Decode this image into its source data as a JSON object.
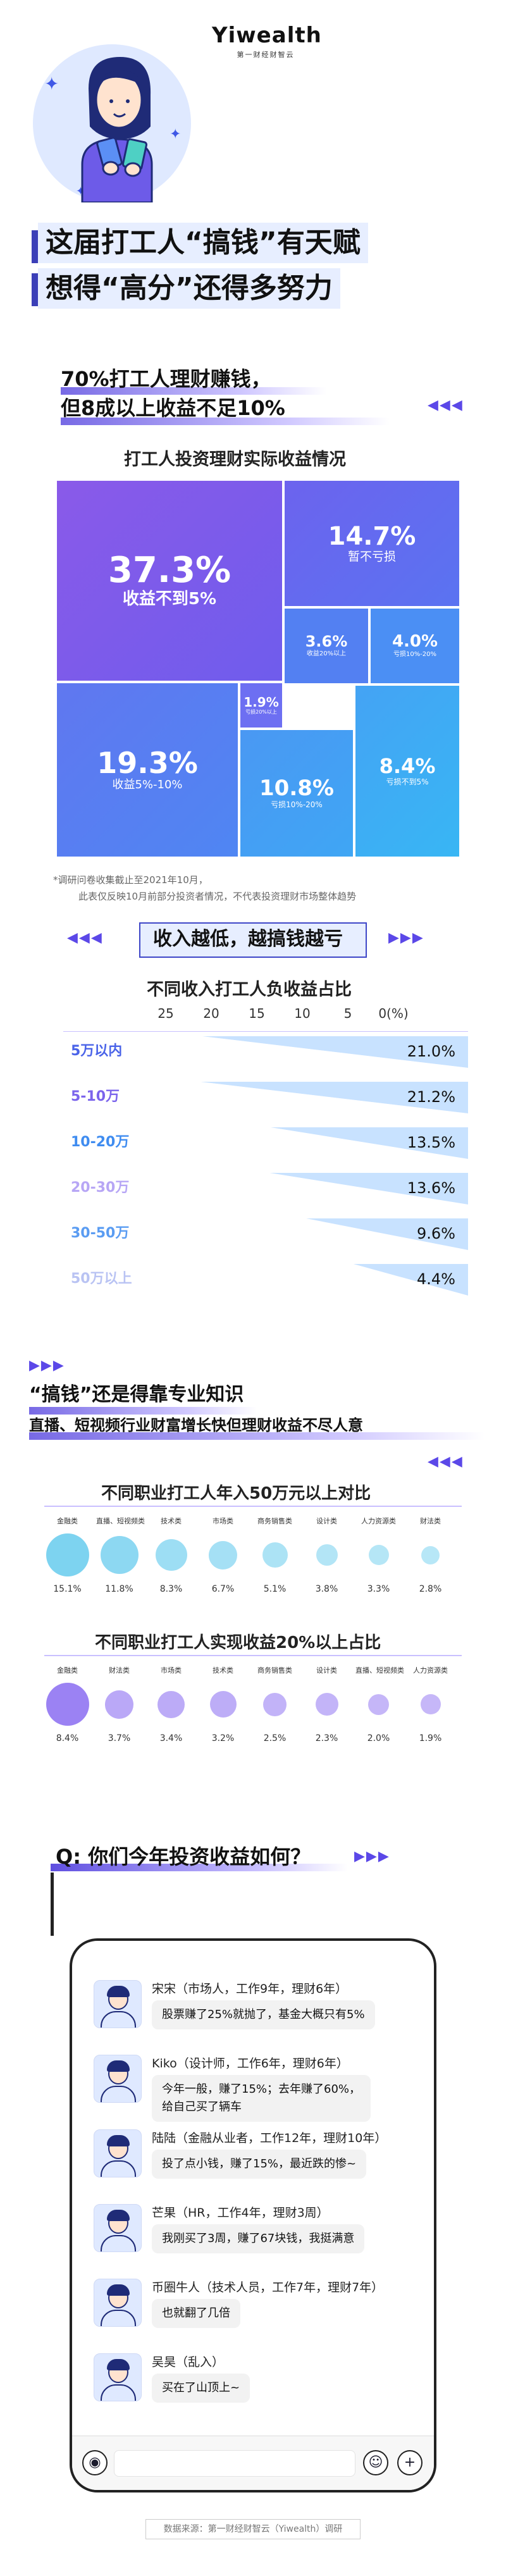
{
  "brand": {
    "name": "Yiwealth",
    "tagline": "第一财经财智云"
  },
  "header": {
    "title_line1": "这届打工人“搞钱”有天赋",
    "title_line2": "想得“高分”还得多努力"
  },
  "section1": {
    "heading_line1": "70%打工人理财赚钱，",
    "heading_line2": "但8成以上收益不足10%",
    "arrows": "◀◀◀",
    "chart_title": "打工人投资理财实际收益情况",
    "tiles": [
      {
        "pct": "37.3%",
        "label": "收益不到5%",
        "color": "#7a58ec"
      },
      {
        "pct": "14.7%",
        "label": "暂不亏损",
        "color": "#5e6cf0"
      },
      {
        "pct": "1.9%",
        "label": "亏损20%以上",
        "color": "#6d72f3"
      },
      {
        "pct": "3.6%",
        "label": "收益20%以上",
        "color": "#4f86f3"
      },
      {
        "pct": "4.0%",
        "label": "亏损10%-20%",
        "color": "#4c93f4"
      },
      {
        "pct": "19.3%",
        "label": "收益5%-10%",
        "color": "#5b7cf1"
      },
      {
        "pct": "10.8%",
        "label": "亏损10%-20%",
        "color": "#43a1f4"
      },
      {
        "pct": "8.4%",
        "label": "亏损不到5%",
        "color": "#3cacf4"
      }
    ],
    "note_line1": "*调研问卷收集截止至2021年10月，",
    "note_line2": "此表仅反映10月前部分投资者情况，不代表投资理财市场整体趋势"
  },
  "section2": {
    "heading": "收入越低，越搞钱越亏",
    "arrows_left": "◀◀◀",
    "arrows_right": "▶▶▶",
    "chart_title": "不同收入打工人负收益占比",
    "axis_ticks": [
      "25",
      "20",
      "15",
      "10",
      "5",
      "0(%)"
    ],
    "rows": [
      {
        "label": "5万以内",
        "value": "21.0%",
        "num": 21.0,
        "color": "#4a63e8"
      },
      {
        "label": "5-10万",
        "value": "21.2%",
        "num": 21.2,
        "color": "#7b64ec"
      },
      {
        "label": "10-20万",
        "value": "13.5%",
        "num": 13.5,
        "color": "#3f8cf0"
      },
      {
        "label": "20-30万",
        "value": "13.6%",
        "num": 13.6,
        "color": "#b7a6f5"
      },
      {
        "label": "30-50万",
        "value": "9.6%",
        "num": 9.6,
        "color": "#5a9cf2"
      },
      {
        "label": "50万以上",
        "value": "4.4%",
        "num": 4.4,
        "color": "#b9c3f3"
      }
    ]
  },
  "section3": {
    "arrows": "▶▶▶",
    "heading_line1": "“搞钱”还是得靠专业知识",
    "heading_line2": "直播、短视频行业财富增长快但理财收益不尽人意",
    "chart1_title": "不同职业打工人年入50万元以上对比",
    "chart1": [
      {
        "name": "金融类",
        "value": "15.1%",
        "num": 15.1
      },
      {
        "name": "直播、短视频类",
        "value": "11.8%",
        "num": 11.8
      },
      {
        "name": "技术类",
        "value": "8.3%",
        "num": 8.3
      },
      {
        "name": "市场类",
        "value": "6.7%",
        "num": 6.7
      },
      {
        "name": "商务销售类",
        "value": "5.1%",
        "num": 5.1
      },
      {
        "name": "设计类",
        "value": "3.8%",
        "num": 3.8
      },
      {
        "name": "人力资源类",
        "value": "3.3%",
        "num": 3.3
      },
      {
        "name": "财法类",
        "value": "2.8%",
        "num": 2.8
      }
    ],
    "chart2_title": "不同职业打工人实现收益20%以上占比",
    "chart2": [
      {
        "name": "金融类",
        "value": "8.4%",
        "num": 8.4
      },
      {
        "name": "财法类",
        "value": "3.7%",
        "num": 3.7
      },
      {
        "name": "市场类",
        "value": "3.4%",
        "num": 3.4
      },
      {
        "name": "技术类",
        "value": "3.2%",
        "num": 3.2
      },
      {
        "name": "商务销售类",
        "value": "2.5%",
        "num": 2.5
      },
      {
        "name": "设计类",
        "value": "2.3%",
        "num": 2.3
      },
      {
        "name": "直播、短视频类",
        "value": "2.0%",
        "num": 2.0
      },
      {
        "name": "人力资源类",
        "value": "1.9%",
        "num": 1.9
      }
    ],
    "color_1": "#7dd3f0",
    "color_2": "#9b82f3"
  },
  "qa": {
    "question": "Q: 你们今年投资收益如何？",
    "arrows": "▶▶▶",
    "chats": [
      {
        "name": "宋宋（市场人，工作9年，理财6年）",
        "message": "股票赚了25%就抛了，基金大概只有5%"
      },
      {
        "name": "Kiko（设计师，工作6年，理财6年）",
        "message": "今年一般，赚了15%；去年赚了60%，",
        "message2": "给自己买了辆车"
      },
      {
        "name": "陆陆（金融从业者，工作12年，理财10年）",
        "message": "投了点小钱，赚了15%，最近跌的惨~"
      },
      {
        "name": "芒果（HR，工作4年，理财3周）",
        "message": "我刚买了3周，赚了67块钱，我挺满意"
      },
      {
        "name": "币圈牛人（技术人员，工作7年，理财7年）",
        "message": "也就翻了几倍"
      },
      {
        "name": "吴昊（乱入）",
        "message": "买在了山顶上~"
      }
    ],
    "icons": [
      "voice-icon",
      "emoji-icon",
      "plus-icon"
    ]
  },
  "source": "数据来源：第一财经财智云（Yiwealth）调研"
}
